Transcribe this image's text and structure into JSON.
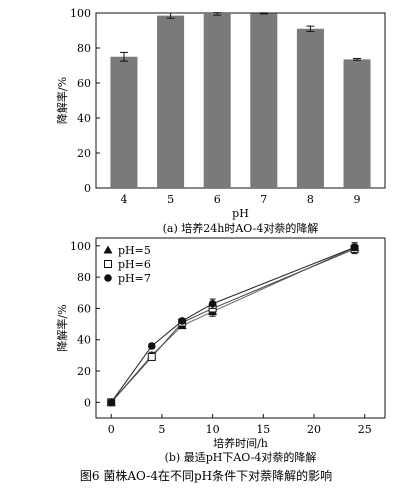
{
  "figure_caption": "图6   菌株AO-4在不同pH条件下对萘降解的影响",
  "chart_data": [
    {
      "type": "bar",
      "caption": "(a) 培养24h时AO-4对萘的降解",
      "xlabel": "pH",
      "ylabel": "降解率/%",
      "categories": [
        "4",
        "5",
        "6",
        "7",
        "8",
        "9"
      ],
      "values": [
        75,
        98.5,
        99.5,
        99.8,
        91,
        73.5
      ],
      "errors": [
        2.5,
        1.5,
        0.7,
        0.3,
        1.5,
        0.5
      ],
      "ylim": [
        0,
        100
      ],
      "yticks": [
        0,
        20,
        40,
        60,
        80,
        100
      ],
      "bar_color": "#7a7a7a"
    },
    {
      "type": "line",
      "caption": "(b) 最适pH下AO-4对萘的降解",
      "xlabel": "培养时间/h",
      "ylabel": "降解率/%",
      "xlim": [
        -1.5,
        27
      ],
      "ylim": [
        -10,
        105
      ],
      "xticks": [
        0,
        5,
        10,
        15,
        20,
        25
      ],
      "yticks": [
        0,
        20,
        40,
        60,
        80,
        100
      ],
      "legend_position": "top-left",
      "series": [
        {
          "name": "pH=5",
          "marker": "triangle",
          "x": [
            0,
            4,
            7,
            10,
            24
          ],
          "y": [
            0,
            30,
            49,
            58,
            99
          ],
          "err": [
            0,
            2,
            1.5,
            3,
            3
          ]
        },
        {
          "name": "pH=6",
          "marker": "square-open",
          "x": [
            0,
            4,
            7,
            10,
            24
          ],
          "y": [
            0,
            29,
            51,
            60,
            98
          ],
          "err": [
            0,
            2,
            1.5,
            3,
            3
          ]
        },
        {
          "name": "pH=7",
          "marker": "circle",
          "x": [
            0,
            4,
            7,
            10,
            24
          ],
          "y": [
            0,
            36,
            52,
            63,
            99
          ],
          "err": [
            0,
            1.5,
            1.5,
            3,
            2
          ]
        }
      ]
    }
  ]
}
